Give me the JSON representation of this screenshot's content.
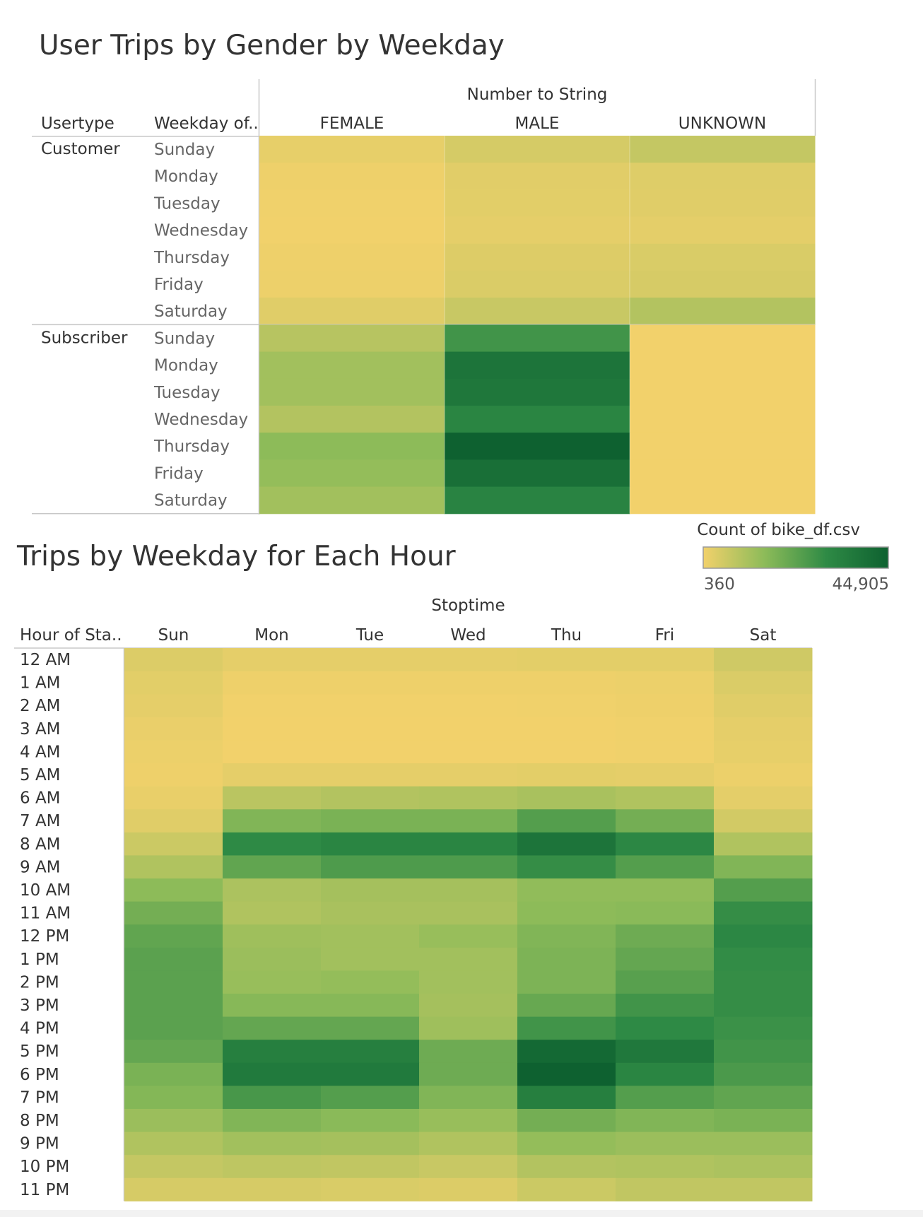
{
  "chart_data": [
    {
      "type": "heatmap",
      "title": "User Trips by Gender by Weekday",
      "column_group_label": "Number to String",
      "row_header_labels": [
        "Usertype",
        "Weekday of.."
      ],
      "columns": [
        "FEMALE",
        "MALE",
        "UNKNOWN"
      ],
      "row_groups": [
        {
          "name": "Customer",
          "rows": [
            "Sunday",
            "Monday",
            "Tuesday",
            "Wednesday",
            "Thursday",
            "Friday",
            "Saturday"
          ],
          "values": [
            [
              2000,
              4600,
              7000
            ],
            [
              900,
              2800,
              3200
            ],
            [
              600,
              2700,
              3000
            ],
            [
              500,
              2200,
              2400
            ],
            [
              900,
              3400,
              4000
            ],
            [
              1100,
              3800,
              4400
            ],
            [
              3000,
              6500,
              9500
            ]
          ]
        },
        {
          "name": "Subscriber",
          "rows": [
            "Sunday",
            "Monday",
            "Tuesday",
            "Wednesday",
            "Thursday",
            "Friday",
            "Saturday"
          ],
          "values": [
            [
              9000,
              27000,
              360
            ],
            [
              12000,
              38000,
              360
            ],
            [
              12000,
              37000,
              360
            ],
            [
              9500,
              32000,
              360
            ],
            [
              15000,
              44905,
              360
            ],
            [
              14000,
              40000,
              360
            ],
            [
              12000,
              32500,
              360
            ]
          ]
        }
      ]
    },
    {
      "type": "heatmap",
      "title": "Trips by Weekday for Each Hour",
      "column_group_label": "Stoptime",
      "row_header_label": "Hour of Sta..",
      "columns": [
        "Sun",
        "Mon",
        "Tue",
        "Wed",
        "Thu",
        "Fri",
        "Sat"
      ],
      "rows": [
        "12 AM",
        "1 AM",
        "2 AM",
        "3 AM",
        "4 AM",
        "5 AM",
        "6 AM",
        "7 AM",
        "8 AM",
        "9 AM",
        "10 AM",
        "11 AM",
        "12 PM",
        "1 PM",
        "2 PM",
        "3 PM",
        "4 PM",
        "5 PM",
        "6 PM",
        "7 PM",
        "8 PM",
        "9 PM",
        "10 PM",
        "11 PM"
      ],
      "values": [
        [
          3500,
          2200,
          2200,
          2200,
          2500,
          2600,
          5500
        ],
        [
          2700,
          900,
          900,
          900,
          1000,
          1300,
          3800
        ],
        [
          2200,
          500,
          500,
          500,
          600,
          900,
          3000
        ],
        [
          1500,
          400,
          400,
          400,
          400,
          600,
          2300
        ],
        [
          1200,
          400,
          400,
          400,
          400,
          600,
          1900
        ],
        [
          1000,
          2200,
          2300,
          2300,
          2500,
          2300,
          1200
        ],
        [
          1600,
          8500,
          9500,
          10000,
          11000,
          10000,
          2400
        ],
        [
          3000,
          17000,
          18000,
          18000,
          24000,
          19000,
          5000
        ],
        [
          6000,
          30000,
          32000,
          32000,
          38000,
          31000,
          10000
        ],
        [
          10000,
          22000,
          25000,
          25000,
          29000,
          24000,
          17000
        ],
        [
          15000,
          10500,
          11500,
          11500,
          14500,
          14500,
          24000
        ],
        [
          19000,
          10000,
          11000,
          11000,
          15000,
          15500,
          29000
        ],
        [
          22000,
          12500,
          12000,
          13500,
          17000,
          20000,
          31000
        ],
        [
          23000,
          13000,
          12000,
          12000,
          17500,
          21500,
          29500
        ],
        [
          23000,
          13500,
          14000,
          12000,
          17500,
          23500,
          29000
        ],
        [
          23000,
          16000,
          16000,
          11500,
          21000,
          27000,
          29000
        ],
        [
          23000,
          21500,
          21500,
          12500,
          27000,
          30000,
          28000
        ],
        [
          21500,
          34000,
          34000,
          20000,
          42000,
          36500,
          27000
        ],
        [
          18000,
          36000,
          36000,
          20000,
          44905,
          32000,
          25500
        ],
        [
          16500,
          26000,
          24000,
          17000,
          34000,
          24000,
          22000
        ],
        [
          13000,
          17000,
          15500,
          13500,
          19000,
          17000,
          18000
        ],
        [
          10000,
          12000,
          11500,
          10000,
          14000,
          13000,
          13000
        ],
        [
          7000,
          8000,
          7500,
          6500,
          9500,
          10000,
          10500
        ],
        [
          4500,
          4500,
          4000,
          3500,
          6000,
          7500,
          7500
        ]
      ]
    }
  ],
  "legend": {
    "title": "Count of bike_df.csv",
    "min_label": "360",
    "max_label": "44,905",
    "min": 360,
    "max": 44905,
    "colors": [
      "#f2d16b",
      "#8cbb59",
      "#2e8a45",
      "#0e6130"
    ]
  }
}
